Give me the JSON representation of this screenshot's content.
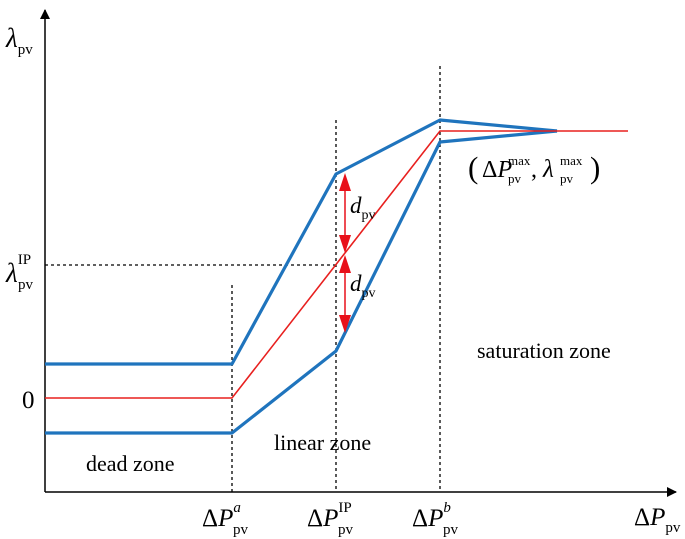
{
  "colors": {
    "envelope": "#1f74bd",
    "nominal": "#e8201f",
    "arrow": "#e8101a",
    "axis": "#000000"
  },
  "y_axis": {
    "symbol": "λ",
    "sub": "pv"
  },
  "x_axis": {
    "symbol": "ΔP",
    "sub": "pv"
  },
  "ticks": {
    "y_ip": {
      "symbol": "λ",
      "sub": "pv",
      "sup": "IP"
    },
    "y_zero": "0",
    "x_a": {
      "symbol": "ΔP",
      "sub": "pv",
      "sup": "a"
    },
    "x_ip": {
      "symbol": "ΔP",
      "sub": "pv",
      "sup": "IP"
    },
    "x_b": {
      "symbol": "ΔP",
      "sub": "pv",
      "sup": "b"
    }
  },
  "deviation": {
    "symbol": "d",
    "sub": "pv"
  },
  "max_point": {
    "open": "(",
    "p_symbol": "ΔP",
    "p_sub": "pv",
    "p_sup": "max",
    "comma": ",",
    "l_symbol": "λ",
    "l_sub": "pv",
    "l_sup": "max",
    "close": ")"
  },
  "zones": {
    "dead": "dead zone",
    "linear": "linear zone",
    "saturation": "saturation zone"
  }
}
